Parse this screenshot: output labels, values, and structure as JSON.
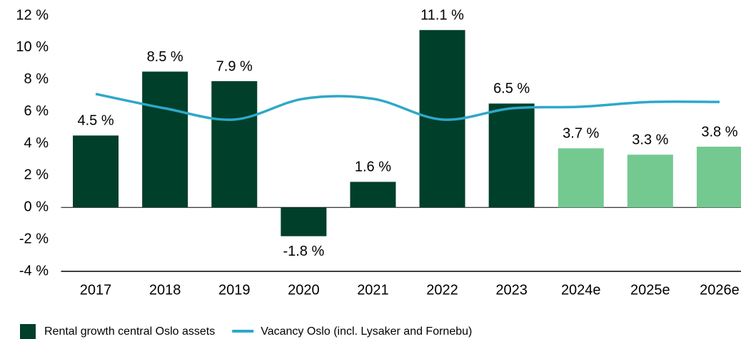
{
  "chart_data": {
    "type": "bar-line",
    "categories": [
      "2017",
      "2018",
      "2019",
      "2020",
      "2021",
      "2022",
      "2023",
      "2024e",
      "2025e",
      "2026e"
    ],
    "series": [
      {
        "name": "Rental growth central Oslo assets",
        "type": "bar",
        "color": "#003f2a",
        "colors": [
          "#003f2a",
          "#003f2a",
          "#003f2a",
          "#003f2a",
          "#003f2a",
          "#003f2a",
          "#003f2a",
          "#74c991",
          "#74c991",
          "#74c991"
        ],
        "values": [
          4.5,
          8.5,
          7.9,
          -1.8,
          1.6,
          11.1,
          6.5,
          3.7,
          3.3,
          3.8
        ],
        "value_labels": [
          "4.5 %",
          "8.5 %",
          "7.9 %",
          "-1.8 %",
          "1.6 %",
          "11.1 %",
          "6.5 %",
          "3.7 %",
          "3.3 %",
          "3.8 %"
        ]
      },
      {
        "name": "Vacancy Oslo (incl. Lysaker and Fornebu)",
        "type": "line",
        "color": "#2ea8c9",
        "values": [
          7.1,
          6.2,
          5.5,
          6.8,
          6.8,
          5.5,
          6.2,
          6.3,
          6.6,
          6.6
        ]
      }
    ],
    "ylim": [
      -4,
      12
    ],
    "yticks": [
      {
        "value": -4,
        "label": "-4 %"
      },
      {
        "value": -2,
        "label": "-2 %"
      },
      {
        "value": 0,
        "label": "0 %"
      },
      {
        "value": 2,
        "label": "2 %"
      },
      {
        "value": 4,
        "label": "4 %"
      },
      {
        "value": 6,
        "label": "6 %"
      },
      {
        "value": 8,
        "label": "8 %"
      },
      {
        "value": 10,
        "label": "10 %"
      },
      {
        "value": 12,
        "label": "12 %"
      }
    ],
    "legend": "bottom-left"
  }
}
